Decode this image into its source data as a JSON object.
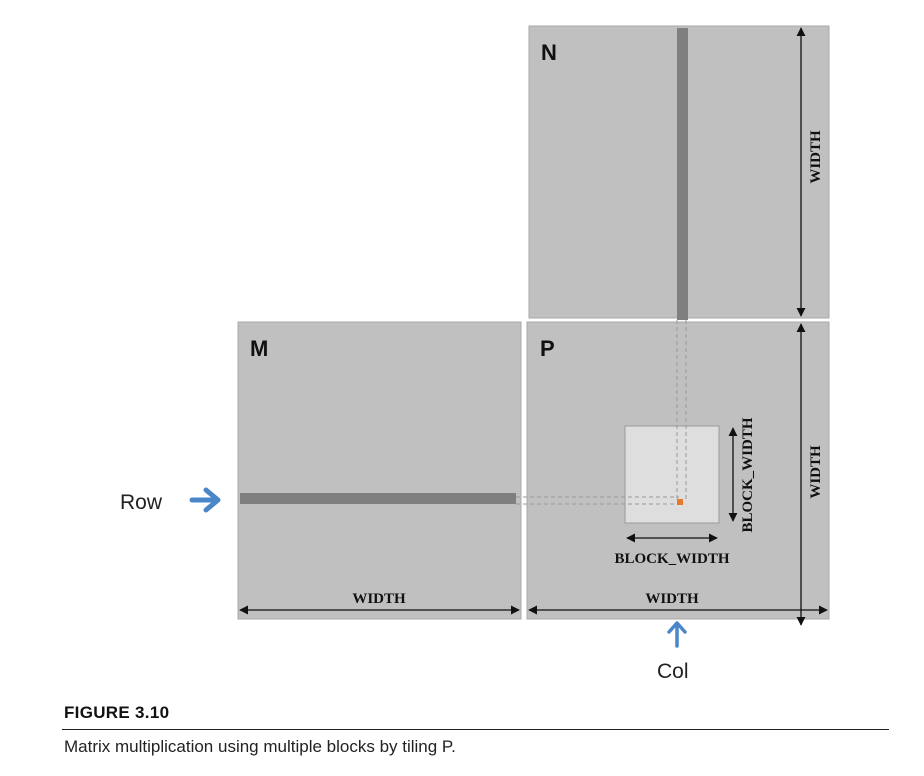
{
  "figure": {
    "title": "FIGURE 3.10",
    "caption": "Matrix multiplication using multiple blocks by tiling P."
  },
  "matrices": {
    "n": {
      "label": "N"
    },
    "m": {
      "label": "M"
    },
    "p": {
      "label": "P"
    }
  },
  "dimensions": {
    "width": "WIDTH",
    "block_width": "BLOCK_WIDTH"
  },
  "pointers": {
    "row": "Row",
    "col": "Col"
  },
  "colors": {
    "matrix_fill": "#c0c0c0",
    "strip_fill": "#7f7f7f",
    "tile_fill": "#dedede",
    "element_fill": "#e8792b",
    "pointer_arrow": "#4a86c8",
    "guide_line": "#9a9a9a"
  }
}
